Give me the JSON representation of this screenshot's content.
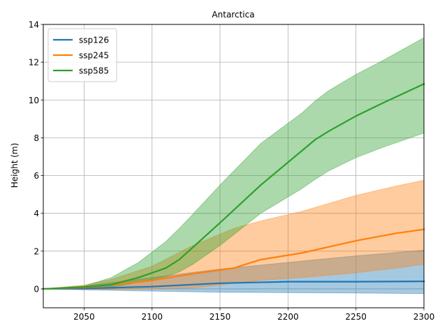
{
  "chart_data": {
    "type": "area",
    "title": "Antarctica",
    "xlabel": "",
    "ylabel": "Height (m)",
    "xlim": [
      2020,
      2300
    ],
    "ylim": [
      -1,
      14
    ],
    "xticks": [
      2050,
      2100,
      2150,
      2200,
      2250,
      2300
    ],
    "yticks": [
      0,
      2,
      4,
      6,
      8,
      10,
      12,
      14
    ],
    "grid": true,
    "legend_position": "top-left",
    "series": [
      {
        "name": "ssp126",
        "color": "#1f77b4",
        "x": [
          2020,
          2050,
          2100,
          2150,
          2200,
          2250,
          2300
        ],
        "median": [
          0.0,
          0.02,
          0.12,
          0.3,
          0.38,
          0.38,
          0.4
        ],
        "lower": [
          0.0,
          -0.05,
          -0.12,
          -0.18,
          -0.2,
          -0.22,
          -0.25
        ],
        "upper": [
          0.0,
          0.15,
          0.6,
          1.05,
          1.4,
          1.75,
          2.05
        ]
      },
      {
        "name": "ssp245",
        "color": "#ff7f0e",
        "x": [
          2020,
          2050,
          2070,
          2100,
          2130,
          2150,
          2160,
          2180,
          2210,
          2250,
          2280,
          2300
        ],
        "median": [
          0.0,
          0.08,
          0.2,
          0.45,
          0.8,
          1.0,
          1.1,
          1.55,
          1.9,
          2.55,
          2.95,
          3.15
        ],
        "lower": [
          0.0,
          -0.03,
          -0.02,
          0.0,
          0.05,
          0.2,
          0.3,
          0.45,
          0.6,
          0.85,
          1.1,
          1.3
        ],
        "upper": [
          0.0,
          0.2,
          0.5,
          1.2,
          2.3,
          2.9,
          3.2,
          3.6,
          4.1,
          4.95,
          5.45,
          5.75
        ]
      },
      {
        "name": "ssp585",
        "color": "#2ca02c",
        "x": [
          2020,
          2050,
          2070,
          2090,
          2110,
          2120,
          2130,
          2150,
          2180,
          2210,
          2220,
          2230,
          2250,
          2270,
          2300
        ],
        "median": [
          0.0,
          0.1,
          0.22,
          0.6,
          1.1,
          1.55,
          2.2,
          3.5,
          5.5,
          7.3,
          7.9,
          8.35,
          9.15,
          9.85,
          10.85
        ],
        "lower": [
          0.0,
          0.0,
          0.1,
          0.35,
          0.65,
          0.9,
          1.3,
          2.3,
          4.0,
          5.3,
          5.8,
          6.25,
          6.95,
          7.5,
          8.25
        ],
        "upper": [
          0.0,
          0.15,
          0.6,
          1.4,
          2.5,
          3.2,
          3.95,
          5.5,
          7.7,
          9.3,
          9.95,
          10.5,
          11.35,
          12.1,
          13.3
        ]
      }
    ]
  }
}
